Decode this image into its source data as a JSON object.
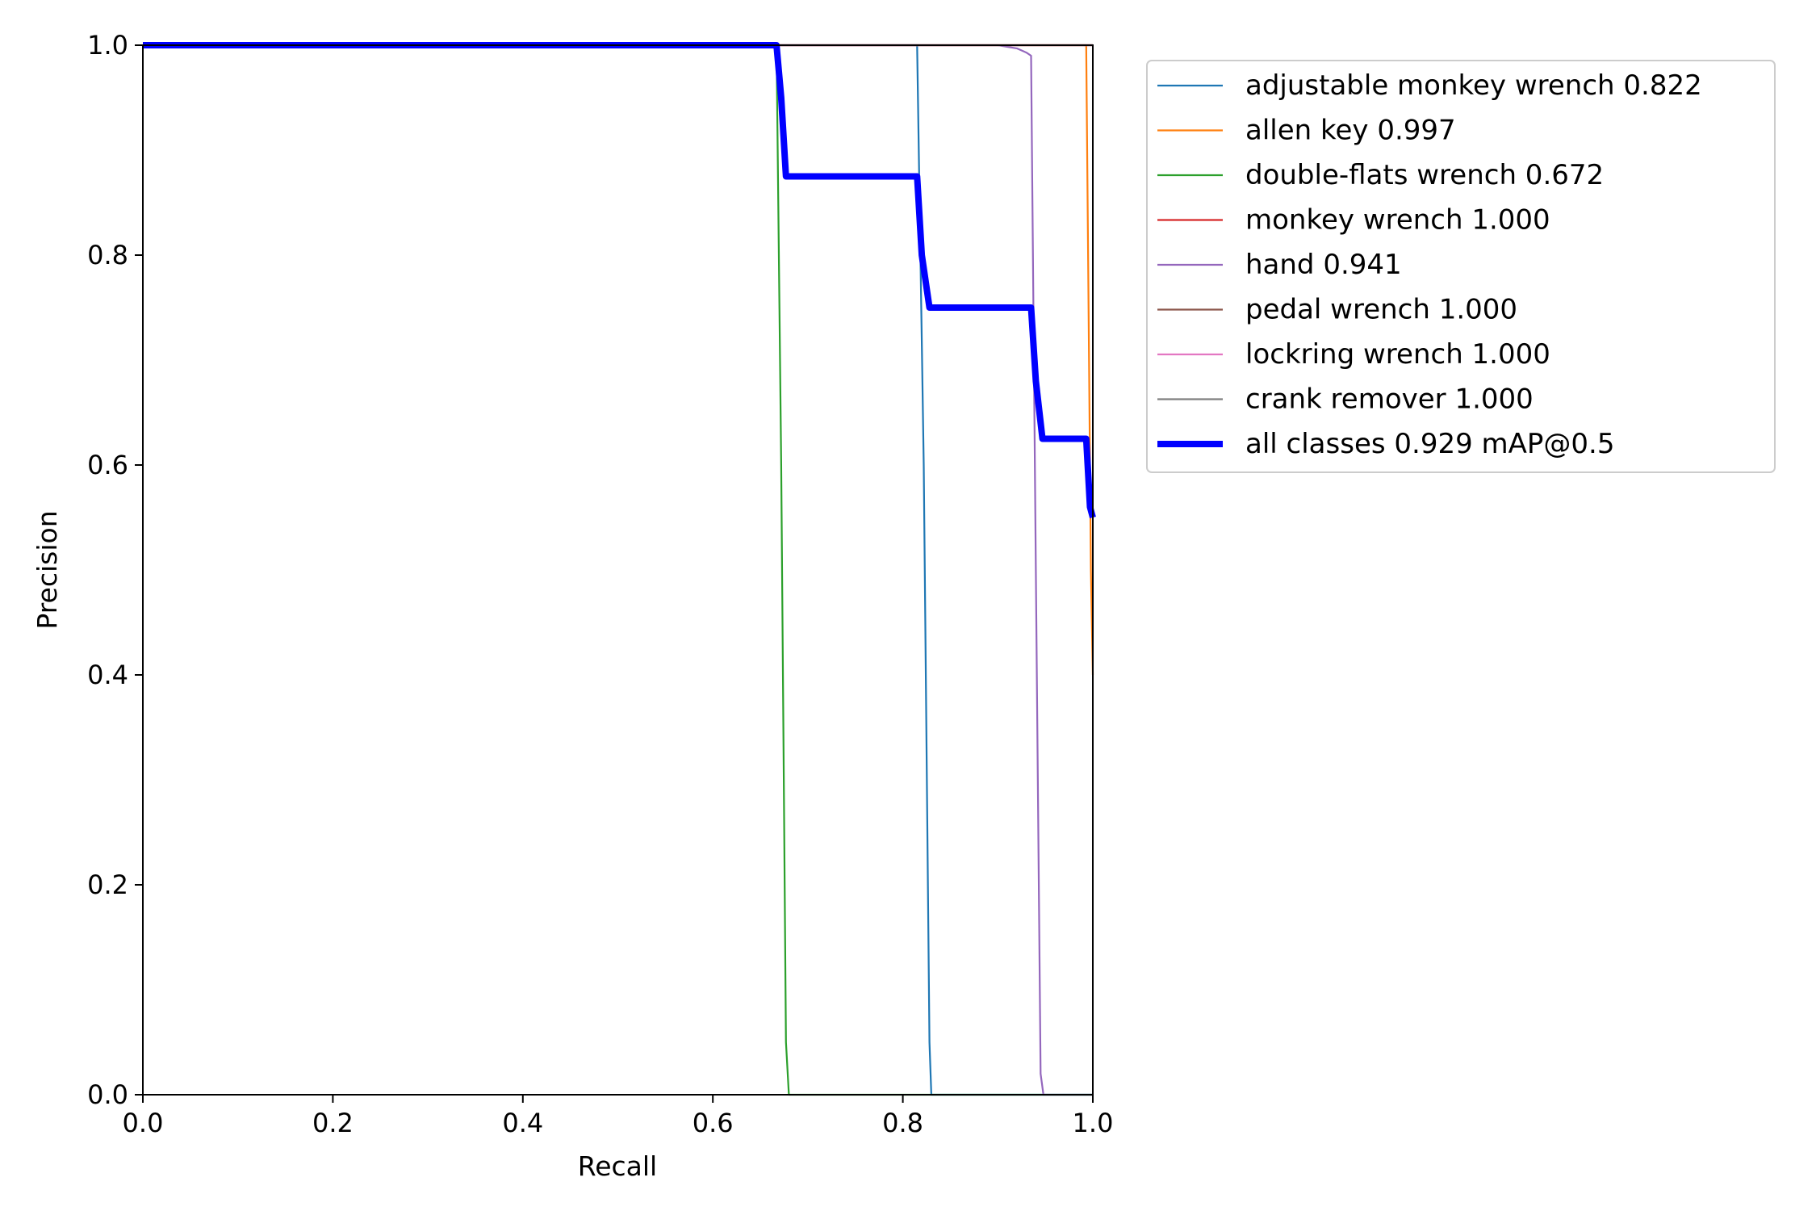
{
  "chart_data": {
    "type": "line",
    "title": "",
    "xlabel": "Recall",
    "ylabel": "Precision",
    "xlim": [
      0,
      1
    ],
    "ylim": [
      0,
      1
    ],
    "xticks": [
      "0.0",
      "0.2",
      "0.4",
      "0.6",
      "0.8",
      "1.0"
    ],
    "yticks": [
      "0.0",
      "0.2",
      "0.4",
      "0.6",
      "0.8",
      "1.0"
    ],
    "grid": false,
    "legend_position": "outside-top-right",
    "series": [
      {
        "name": "adjustable monkey wrench 0.822",
        "color": "#1f77b4",
        "x": [
          0,
          0.815,
          0.822,
          0.828,
          0.83,
          1.0
        ],
        "y": [
          1.0,
          1.0,
          0.6,
          0.05,
          0.0,
          0.0
        ]
      },
      {
        "name": "allen key 0.997",
        "color": "#ff7f0e",
        "x": [
          0,
          0.993,
          0.996,
          0.998,
          1.0
        ],
        "y": [
          1.0,
          1.0,
          0.7,
          0.5,
          0.4
        ]
      },
      {
        "name": "double-flats wrench 0.672",
        "color": "#2ca02c",
        "x": [
          0,
          0.667,
          0.672,
          0.677,
          0.68,
          1.0
        ],
        "y": [
          1.0,
          1.0,
          0.6,
          0.05,
          0.0,
          0.0
        ]
      },
      {
        "name": "monkey wrench 1.000",
        "color": "#d62728",
        "x": [
          0,
          1.0
        ],
        "y": [
          1.0,
          1.0
        ]
      },
      {
        "name": "hand 0.941",
        "color": "#9467bd",
        "x": [
          0,
          0.9,
          0.92,
          0.93,
          0.935,
          0.94,
          0.945,
          0.948,
          1.0
        ],
        "y": [
          1.0,
          1.0,
          0.997,
          0.993,
          0.99,
          0.5,
          0.02,
          0.0,
          0.0
        ]
      },
      {
        "name": "pedal wrench 1.000",
        "color": "#8c564b",
        "x": [
          0,
          1.0
        ],
        "y": [
          1.0,
          1.0
        ]
      },
      {
        "name": "lockring wrench 1.000",
        "color": "#e377c2",
        "x": [
          0,
          1.0
        ],
        "y": [
          1.0,
          1.0
        ]
      },
      {
        "name": "crank remover 1.000",
        "color": "#7f7f7f",
        "x": [
          0,
          1.0
        ],
        "y": [
          1.0,
          1.0
        ]
      },
      {
        "name": "all classes 0.929 mAP@0.5",
        "color": "#0000ff",
        "x": [
          0,
          0.667,
          0.672,
          0.677,
          0.815,
          0.82,
          0.828,
          0.935,
          0.94,
          0.947,
          0.993,
          0.997,
          1.0
        ],
        "y": [
          1.0,
          1.0,
          0.95,
          0.875,
          0.875,
          0.8,
          0.75,
          0.75,
          0.68,
          0.625,
          0.625,
          0.56,
          0.55
        ]
      }
    ]
  }
}
